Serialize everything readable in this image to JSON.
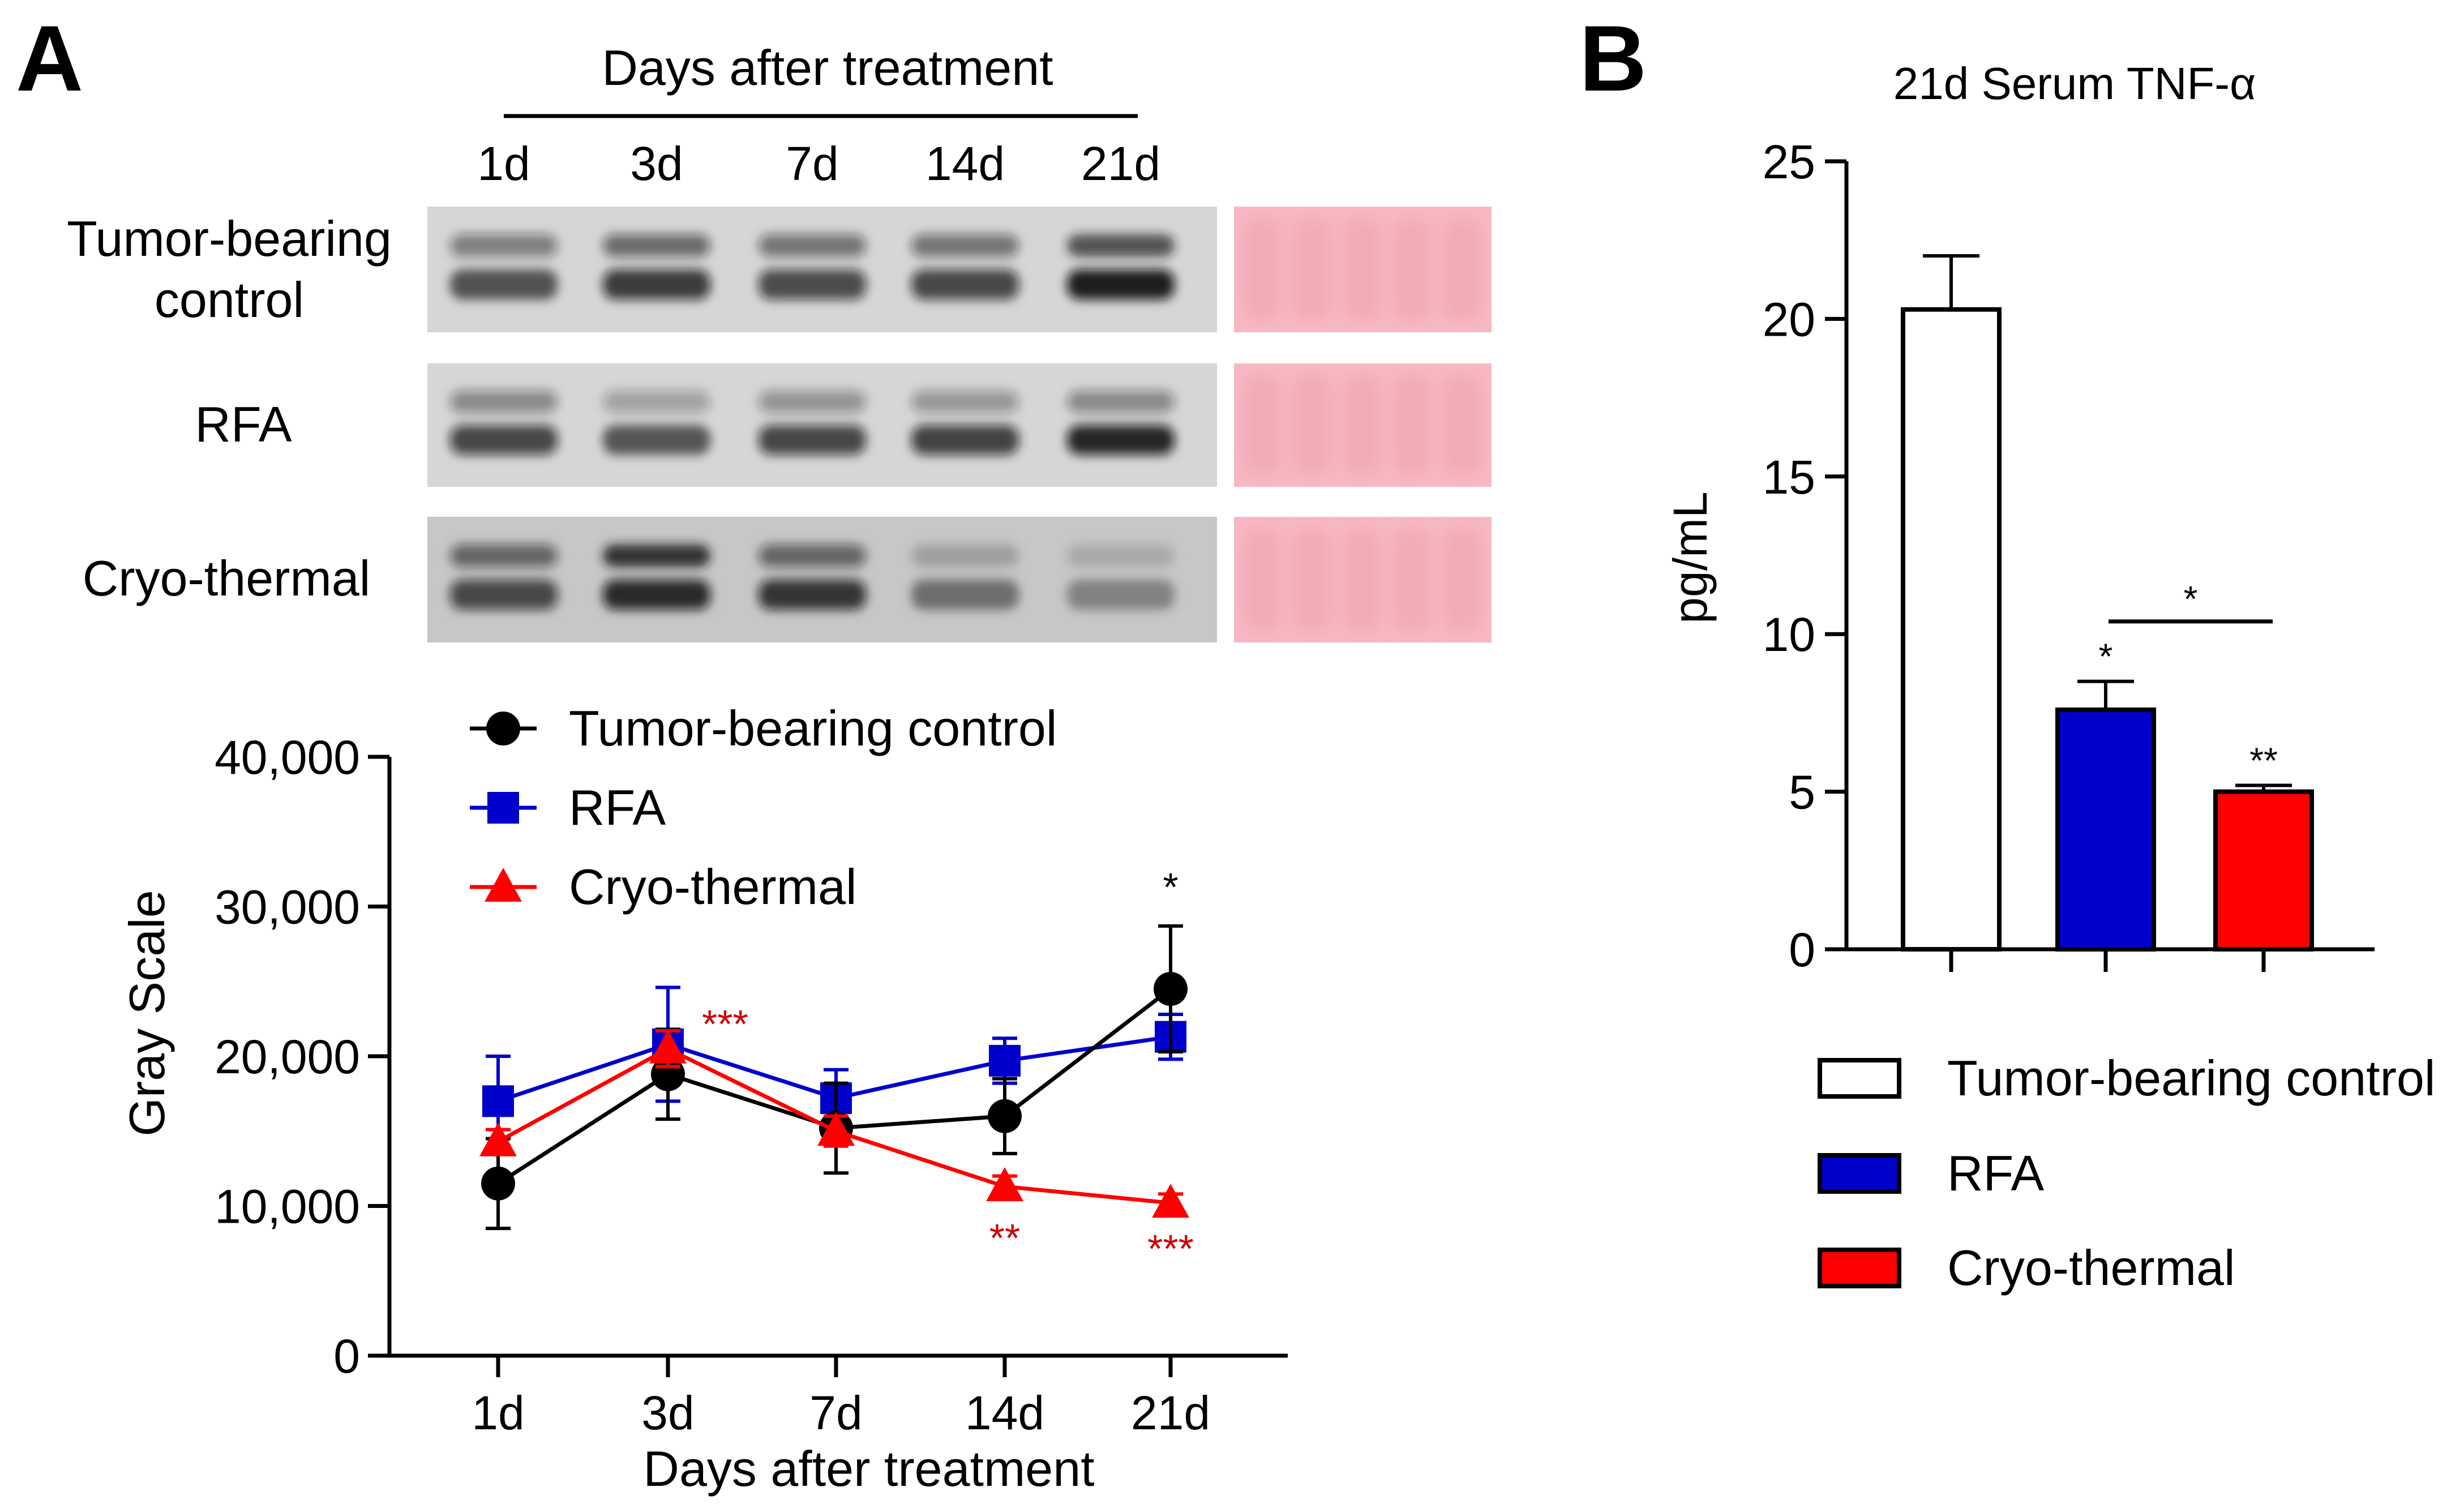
{
  "colors": {
    "control": "#000000",
    "rfa": "#0000cc",
    "cryo": "#ff0000",
    "star_red": "#cc0000",
    "ponceau": "#f7b9c3"
  },
  "panel_a": {
    "letter": "A",
    "blot": {
      "header": "Days after treatment",
      "lanes": [
        "1d",
        "3d",
        "7d",
        "14d",
        "21d"
      ],
      "rows": [
        "Tumor-bearing control",
        "RFA",
        "Cryo-thermal"
      ]
    }
  },
  "panel_b": {
    "letter": "B"
  },
  "chart_data": [
    {
      "type": "line",
      "title": "",
      "xlabel": "Days after treatment",
      "ylabel": "Gray Scale",
      "categories": [
        "1d",
        "3d",
        "7d",
        "14d",
        "21d"
      ],
      "ylim": [
        0,
        40000
      ],
      "yticks": [
        0,
        10000,
        20000,
        30000,
        40000
      ],
      "ytick_labels": [
        "0",
        "10,000",
        "20,000",
        "30,000",
        "40,000"
      ],
      "legend_position": "top",
      "series": [
        {
          "name": "Tumor-bearing control",
          "marker": "circle",
          "color": "#000000",
          "values": [
            11500,
            18800,
            15200,
            16000,
            24500
          ],
          "errors": [
            3000,
            3000,
            3000,
            2500,
            4200
          ],
          "stars": [
            "",
            "",
            "",
            "",
            "*"
          ],
          "star_side": "above"
        },
        {
          "name": "RFA",
          "marker": "square",
          "color": "#0000cc",
          "values": [
            17000,
            20800,
            17200,
            19700,
            21300
          ],
          "errors": [
            3000,
            3800,
            1900,
            1500,
            1500
          ],
          "stars": [
            "",
            "",
            "",
            "",
            ""
          ],
          "star_side": "above"
        },
        {
          "name": "Cryo-thermal",
          "marker": "triangle",
          "color": "#ff0000",
          "values": [
            14300,
            20500,
            15000,
            11300,
            10200
          ],
          "errors": [
            800,
            1200,
            1000,
            700,
            600
          ],
          "stars": [
            "",
            "***",
            "",
            "**",
            "***"
          ],
          "star_side": "mixed"
        }
      ]
    },
    {
      "type": "bar",
      "title": "21d Serum TNF-α",
      "xlabel": "",
      "ylabel": "pg/mL",
      "categories": [
        "Tumor-bearing control",
        "RFA",
        "Cryo-thermal"
      ],
      "values": [
        20.3,
        7.6,
        5.0
      ],
      "errors": [
        1.7,
        0.9,
        0.2
      ],
      "colors": [
        "#ffffff",
        "#0000cc",
        "#ff0000"
      ],
      "ylim": [
        0,
        25
      ],
      "yticks": [
        0,
        5,
        10,
        15,
        20,
        25
      ],
      "stars": [
        "",
        "*",
        "**"
      ],
      "bracket": {
        "from": 1,
        "to": 2,
        "label": "*",
        "y": 10.4
      },
      "legend_position": "bottom"
    }
  ]
}
